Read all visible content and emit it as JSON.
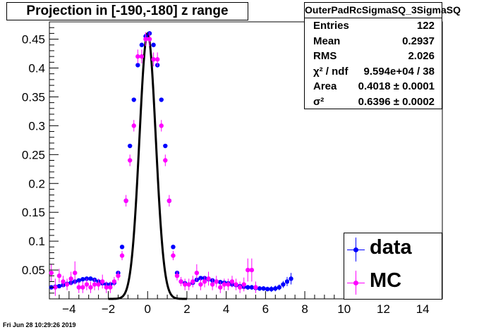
{
  "chart_data": {
    "type": "scatter",
    "title": "Projection in [-190,-180] z range",
    "xlim": [
      -5,
      15
    ],
    "ylim": [
      0,
      0.48
    ],
    "x_ticks": [
      -4,
      -2,
      0,
      2,
      4,
      6,
      8,
      10,
      12,
      14
    ],
    "x_tick_labels": [
      "−4",
      "−2",
      "0",
      "2",
      "4",
      "6",
      "8",
      "10",
      "12",
      "14"
    ],
    "y_ticks": [
      0.05,
      0.1,
      0.15,
      0.2,
      0.25,
      0.3,
      0.35,
      0.4,
      0.45
    ],
    "y_tick_labels": [
      "0.05",
      "0.1",
      "0.15",
      "0.2",
      "0.25",
      "0.3",
      "0.35",
      "0.4",
      "0.45"
    ],
    "grid": false,
    "legend_position": "bottom-right",
    "series": [
      {
        "name": "data",
        "color": "#0000ff",
        "marker": "circle",
        "x": [
          -4.9,
          -4.7,
          -4.5,
          -4.3,
          -4.1,
          -3.9,
          -3.7,
          -3.5,
          -3.3,
          -3.1,
          -2.9,
          -2.7,
          -2.5,
          -2.3,
          -2.1,
          -1.9,
          -1.7,
          -1.5,
          -1.3,
          -1.1,
          -0.9,
          -0.7,
          -0.5,
          -0.3,
          -0.1,
          0.1,
          0.3,
          0.5,
          0.7,
          0.9,
          1.1,
          1.3,
          1.5,
          1.7,
          1.9,
          2.1,
          2.3,
          2.5,
          2.7,
          2.9,
          3.1,
          3.3,
          3.5,
          3.7,
          3.9,
          4.1,
          4.3,
          4.5,
          4.7,
          4.9,
          5.1,
          5.3,
          5.5,
          5.7,
          5.9,
          6.1,
          6.3,
          6.5,
          6.7,
          6.9,
          7.1,
          7.3
        ],
        "y": [
          0.02,
          0.021,
          0.022,
          0.024,
          0.026,
          0.028,
          0.03,
          0.032,
          0.034,
          0.035,
          0.035,
          0.033,
          0.03,
          0.027,
          0.025,
          0.025,
          0.028,
          0.045,
          0.09,
          0.17,
          0.265,
          0.345,
          0.405,
          0.44,
          0.455,
          0.46,
          0.44,
          0.405,
          0.345,
          0.265,
          0.17,
          0.09,
          0.045,
          0.03,
          0.027,
          0.025,
          0.028,
          0.033,
          0.036,
          0.036,
          0.034,
          0.032,
          0.03,
          0.029,
          0.028,
          0.027,
          0.025,
          0.024,
          0.022,
          0.021,
          0.02,
          0.02,
          0.019,
          0.018,
          0.018,
          0.017,
          0.017,
          0.018,
          0.02,
          0.025,
          0.03,
          0.035
        ],
        "yerr": [
          0.003,
          0.003,
          0.003,
          0.003,
          0.003,
          0.003,
          0.003,
          0.003,
          0.003,
          0.003,
          0.003,
          0.003,
          0.003,
          0.003,
          0.003,
          0.003,
          0.003,
          0.003,
          0.003,
          0.003,
          0.003,
          0.003,
          0.003,
          0.003,
          0.003,
          0.003,
          0.003,
          0.003,
          0.003,
          0.003,
          0.003,
          0.003,
          0.003,
          0.003,
          0.003,
          0.003,
          0.003,
          0.003,
          0.003,
          0.003,
          0.003,
          0.003,
          0.003,
          0.003,
          0.003,
          0.003,
          0.003,
          0.003,
          0.003,
          0.004,
          0.004,
          0.004,
          0.004,
          0.004,
          0.004,
          0.004,
          0.005,
          0.005,
          0.005,
          0.006,
          0.008,
          0.01
        ]
      },
      {
        "name": "MC",
        "color": "#ff00ff",
        "marker": "circle",
        "x": [
          -4.9,
          -4.7,
          -4.5,
          -4.3,
          -4.1,
          -3.9,
          -3.7,
          -3.5,
          -3.3,
          -3.1,
          -2.9,
          -2.7,
          -2.5,
          -2.3,
          -2.1,
          -1.9,
          -1.7,
          -1.5,
          -1.3,
          -1.1,
          -0.9,
          -0.7,
          -0.5,
          -0.3,
          -0.1,
          0.1,
          0.3,
          0.5,
          0.7,
          0.9,
          1.1,
          1.3,
          1.5,
          1.7,
          1.9,
          2.1,
          2.3,
          2.5,
          2.7,
          2.9,
          3.1,
          3.3,
          3.5,
          3.7,
          3.9,
          4.1,
          4.3,
          4.5,
          4.7,
          4.9,
          5.1,
          5.3,
          5.5
        ],
        "y": [
          0.045,
          0.02,
          0.04,
          0.03,
          0.025,
          0.035,
          0.045,
          0.02,
          0.02,
          0.025,
          0.02,
          0.025,
          0.025,
          0.03,
          0.02,
          0.02,
          0.03,
          0.04,
          0.075,
          0.17,
          0.24,
          0.3,
          0.42,
          0.42,
          0.45,
          0.45,
          0.415,
          0.415,
          0.3,
          0.24,
          0.17,
          0.075,
          0.04,
          0.03,
          0.025,
          0.025,
          0.03,
          0.045,
          0.025,
          0.03,
          0.035,
          0.025,
          0.03,
          0.02,
          0.025,
          0.025,
          0.03,
          0.025,
          0.02,
          0.025,
          0.05,
          0.05,
          0.02
        ],
        "yerr": [
          0.015,
          0.015,
          0.012,
          0.01,
          0.01,
          0.012,
          0.02,
          0.01,
          0.01,
          0.01,
          0.01,
          0.01,
          0.01,
          0.012,
          0.01,
          0.01,
          0.008,
          0.008,
          0.008,
          0.01,
          0.01,
          0.01,
          0.012,
          0.012,
          0.012,
          0.012,
          0.012,
          0.012,
          0.01,
          0.01,
          0.01,
          0.008,
          0.008,
          0.008,
          0.01,
          0.01,
          0.01,
          0.015,
          0.01,
          0.01,
          0.012,
          0.01,
          0.01,
          0.01,
          0.01,
          0.01,
          0.01,
          0.01,
          0.01,
          0.012,
          0.02,
          0.02,
          0.01
        ]
      }
    ],
    "fit": {
      "color": "#000000",
      "amplitude": 0.46,
      "mean": 0,
      "sigma2": 0.6396,
      "range": [
        -2.0,
        2.0
      ]
    }
  },
  "stats": {
    "title": "OuterPadRcSigmaSQ_3SigmaSQ",
    "rows": [
      {
        "key": "Entries",
        "value": "122"
      },
      {
        "key": "Mean",
        "value": "0.2937"
      },
      {
        "key": "RMS",
        "value": "2.026"
      },
      {
        "key": "χ² / ndf",
        "value": "9.594e+04 / 38"
      },
      {
        "key": "Area",
        "value": "0.4018 ± 0.0001"
      },
      {
        "key": "σ²",
        "value": "0.6396 ± 0.0002"
      }
    ]
  },
  "legend": [
    {
      "label": "data",
      "color": "#0000ff"
    },
    {
      "label": "MC",
      "color": "#ff00ff"
    }
  ],
  "timestamp": "Fri Jun 28 10:29:26 2019"
}
